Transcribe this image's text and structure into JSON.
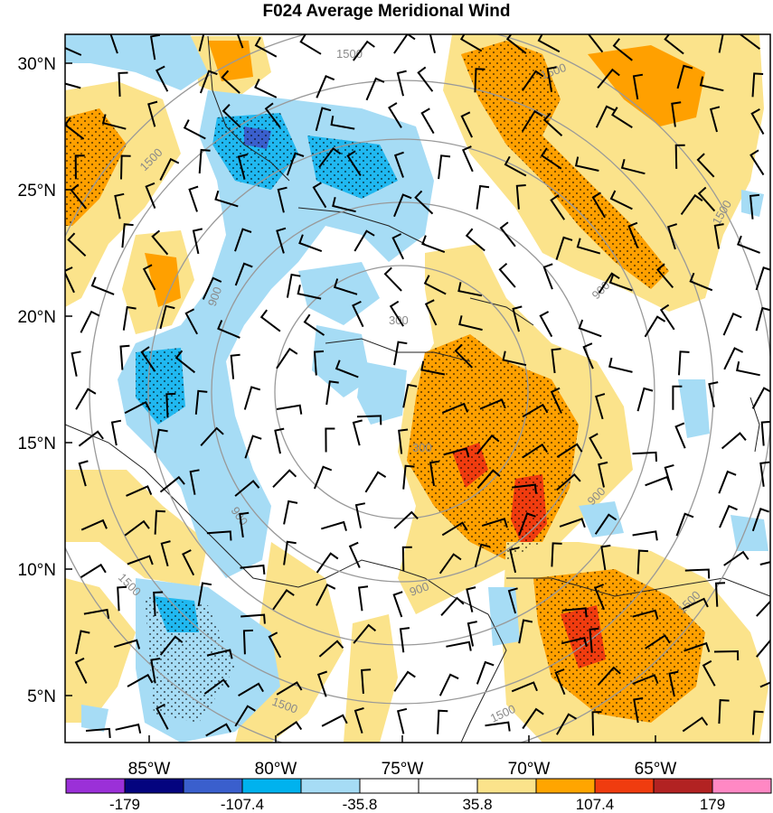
{
  "title": "F024 Average Meridional Wind",
  "lat_labels": [
    "30°N",
    "25°N",
    "20°N",
    "15°N",
    "10°N",
    "5°N"
  ],
  "lon_labels": [
    "85°W",
    "80°W",
    "75°W",
    "70°W",
    "65°W"
  ],
  "range_rings": [
    "300",
    "900",
    "1500"
  ],
  "colorbar": {
    "colors": [
      "#9b30d8",
      "#04047f",
      "#3a5fcd",
      "#00b2ee",
      "#a6dcf5",
      "#ffffff",
      "#ffffff",
      "#fbe38b",
      "#ffa500",
      "#f03c0f",
      "#b22222",
      "#ff88c4"
    ],
    "labels": [
      "-179",
      "-107.4",
      "-35.8",
      "35.8",
      "107.4",
      "179"
    ]
  },
  "colors": {
    "light_blue": "#a6dcf5",
    "medium_blue": "#20b8f0",
    "dark_blue": "#3a5fcd",
    "yellow": "#fbe38b",
    "orange": "#ffa000",
    "red_orange": "#f03c0f",
    "ring_gray": "#999999"
  }
}
